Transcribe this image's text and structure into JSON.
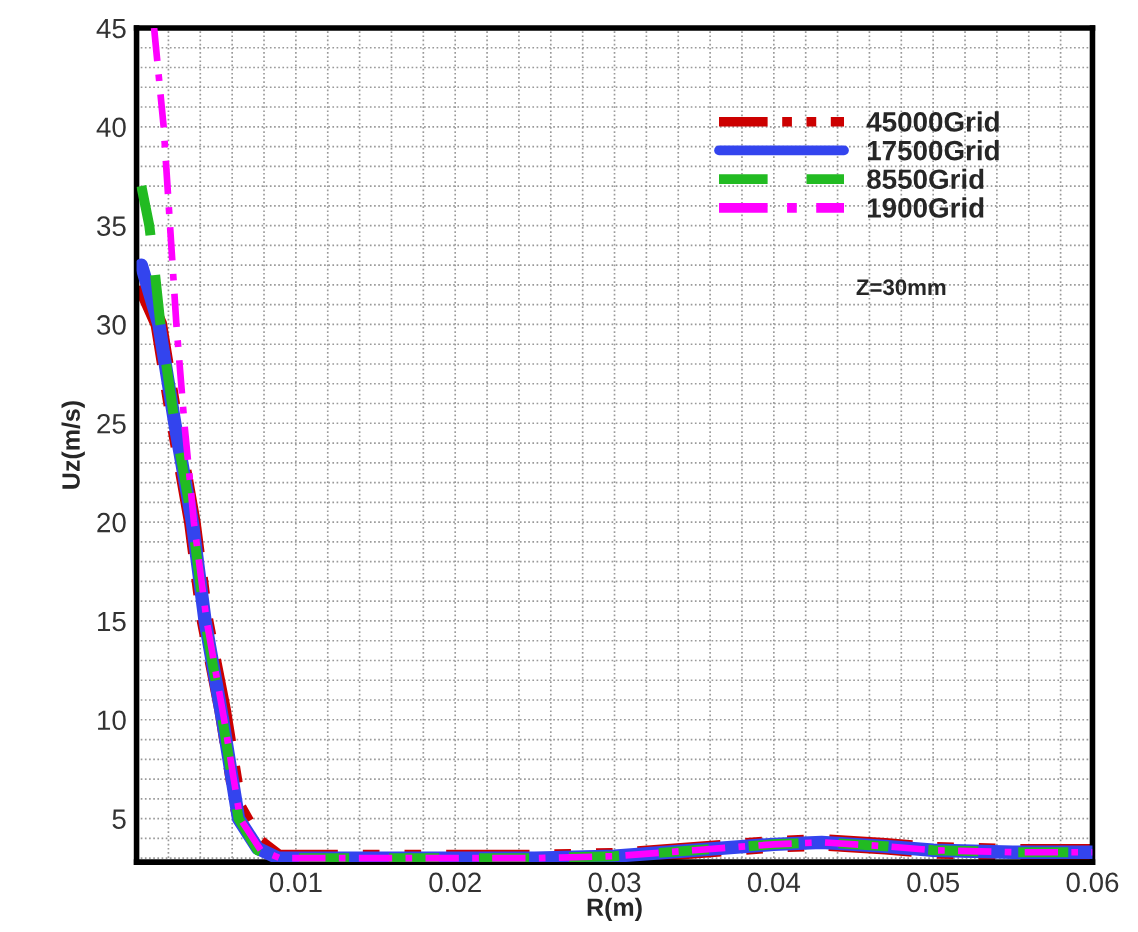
{
  "chart_data": {
    "type": "line",
    "xlabel": "R(m)",
    "ylabel": "Uz(m/s)",
    "xlim": [
      0,
      0.06
    ],
    "ylim": [
      2.8,
      45
    ],
    "xticks": [
      0.01,
      0.02,
      0.03,
      0.04,
      0.05,
      0.06
    ],
    "yticks": [
      5,
      10,
      15,
      20,
      25,
      30,
      35,
      40,
      45
    ],
    "grid": true,
    "legend": "top right",
    "annotations": [
      "Z=30mm"
    ],
    "series": [
      {
        "name": "45000Grid",
        "color": "#cc0000",
        "line_style": "dashdotdot",
        "x": [
          0.0003,
          0.0014,
          0.0024,
          0.0035,
          0.0043,
          0.0054,
          0.0064,
          0.0076,
          0.0089,
          0.015,
          0.02,
          0.025,
          0.03,
          0.035,
          0.04,
          0.043,
          0.047,
          0.05,
          0.055,
          0.06
        ],
        "values": [
          32,
          30,
          25,
          20,
          15,
          10.5,
          5.5,
          3.8,
          3.0,
          3.0,
          3.0,
          3.0,
          3.1,
          3.4,
          3.7,
          3.8,
          3.6,
          3.4,
          3.3,
          3.3
        ]
      },
      {
        "name": "17500Grid",
        "color": "#3344ee",
        "line_style": "solid",
        "x": [
          0.0003,
          0.0014,
          0.0024,
          0.0035,
          0.0043,
          0.0054,
          0.0064,
          0.0076,
          0.0089,
          0.015,
          0.02,
          0.025,
          0.03,
          0.035,
          0.04,
          0.043,
          0.047,
          0.05,
          0.055,
          0.06
        ],
        "values": [
          33,
          30,
          25,
          20,
          15,
          10,
          5,
          3.5,
          3.0,
          3.0,
          3.0,
          3.0,
          3.1,
          3.4,
          3.7,
          3.8,
          3.6,
          3.4,
          3.3,
          3.3
        ]
      },
      {
        "name": "8550Grid",
        "color": "#22bb22",
        "line_style": "dashed",
        "x": [
          0.0003,
          0.0008,
          0.0011,
          0.0015,
          0.0024,
          0.0035,
          0.0043,
          0.0054,
          0.0064,
          0.0076,
          0.0089,
          0.015,
          0.02,
          0.025,
          0.03,
          0.035,
          0.04,
          0.043,
          0.047,
          0.05,
          0.055,
          0.06
        ],
        "values": [
          37,
          35,
          33,
          30,
          25,
          20,
          15,
          10,
          5,
          3.4,
          3.0,
          3.0,
          3.0,
          3.0,
          3.1,
          3.4,
          3.7,
          3.8,
          3.6,
          3.4,
          3.3,
          3.3
        ]
      },
      {
        "name": "1900Grid",
        "color": "#ff00ff",
        "line_style": "dashdot",
        "x": [
          0.0011,
          0.0017,
          0.0021,
          0.0025,
          0.003,
          0.0036,
          0.0044,
          0.0055,
          0.0065,
          0.0078,
          0.009,
          0.015,
          0.02,
          0.025,
          0.03,
          0.035,
          0.04,
          0.043,
          0.047,
          0.05,
          0.055,
          0.06
        ],
        "values": [
          45,
          40,
          35,
          30,
          25,
          20,
          15,
          10,
          5,
          3.4,
          3.0,
          3.0,
          3.0,
          3.0,
          3.1,
          3.4,
          3.7,
          3.8,
          3.6,
          3.4,
          3.3,
          3.3
        ]
      }
    ]
  }
}
